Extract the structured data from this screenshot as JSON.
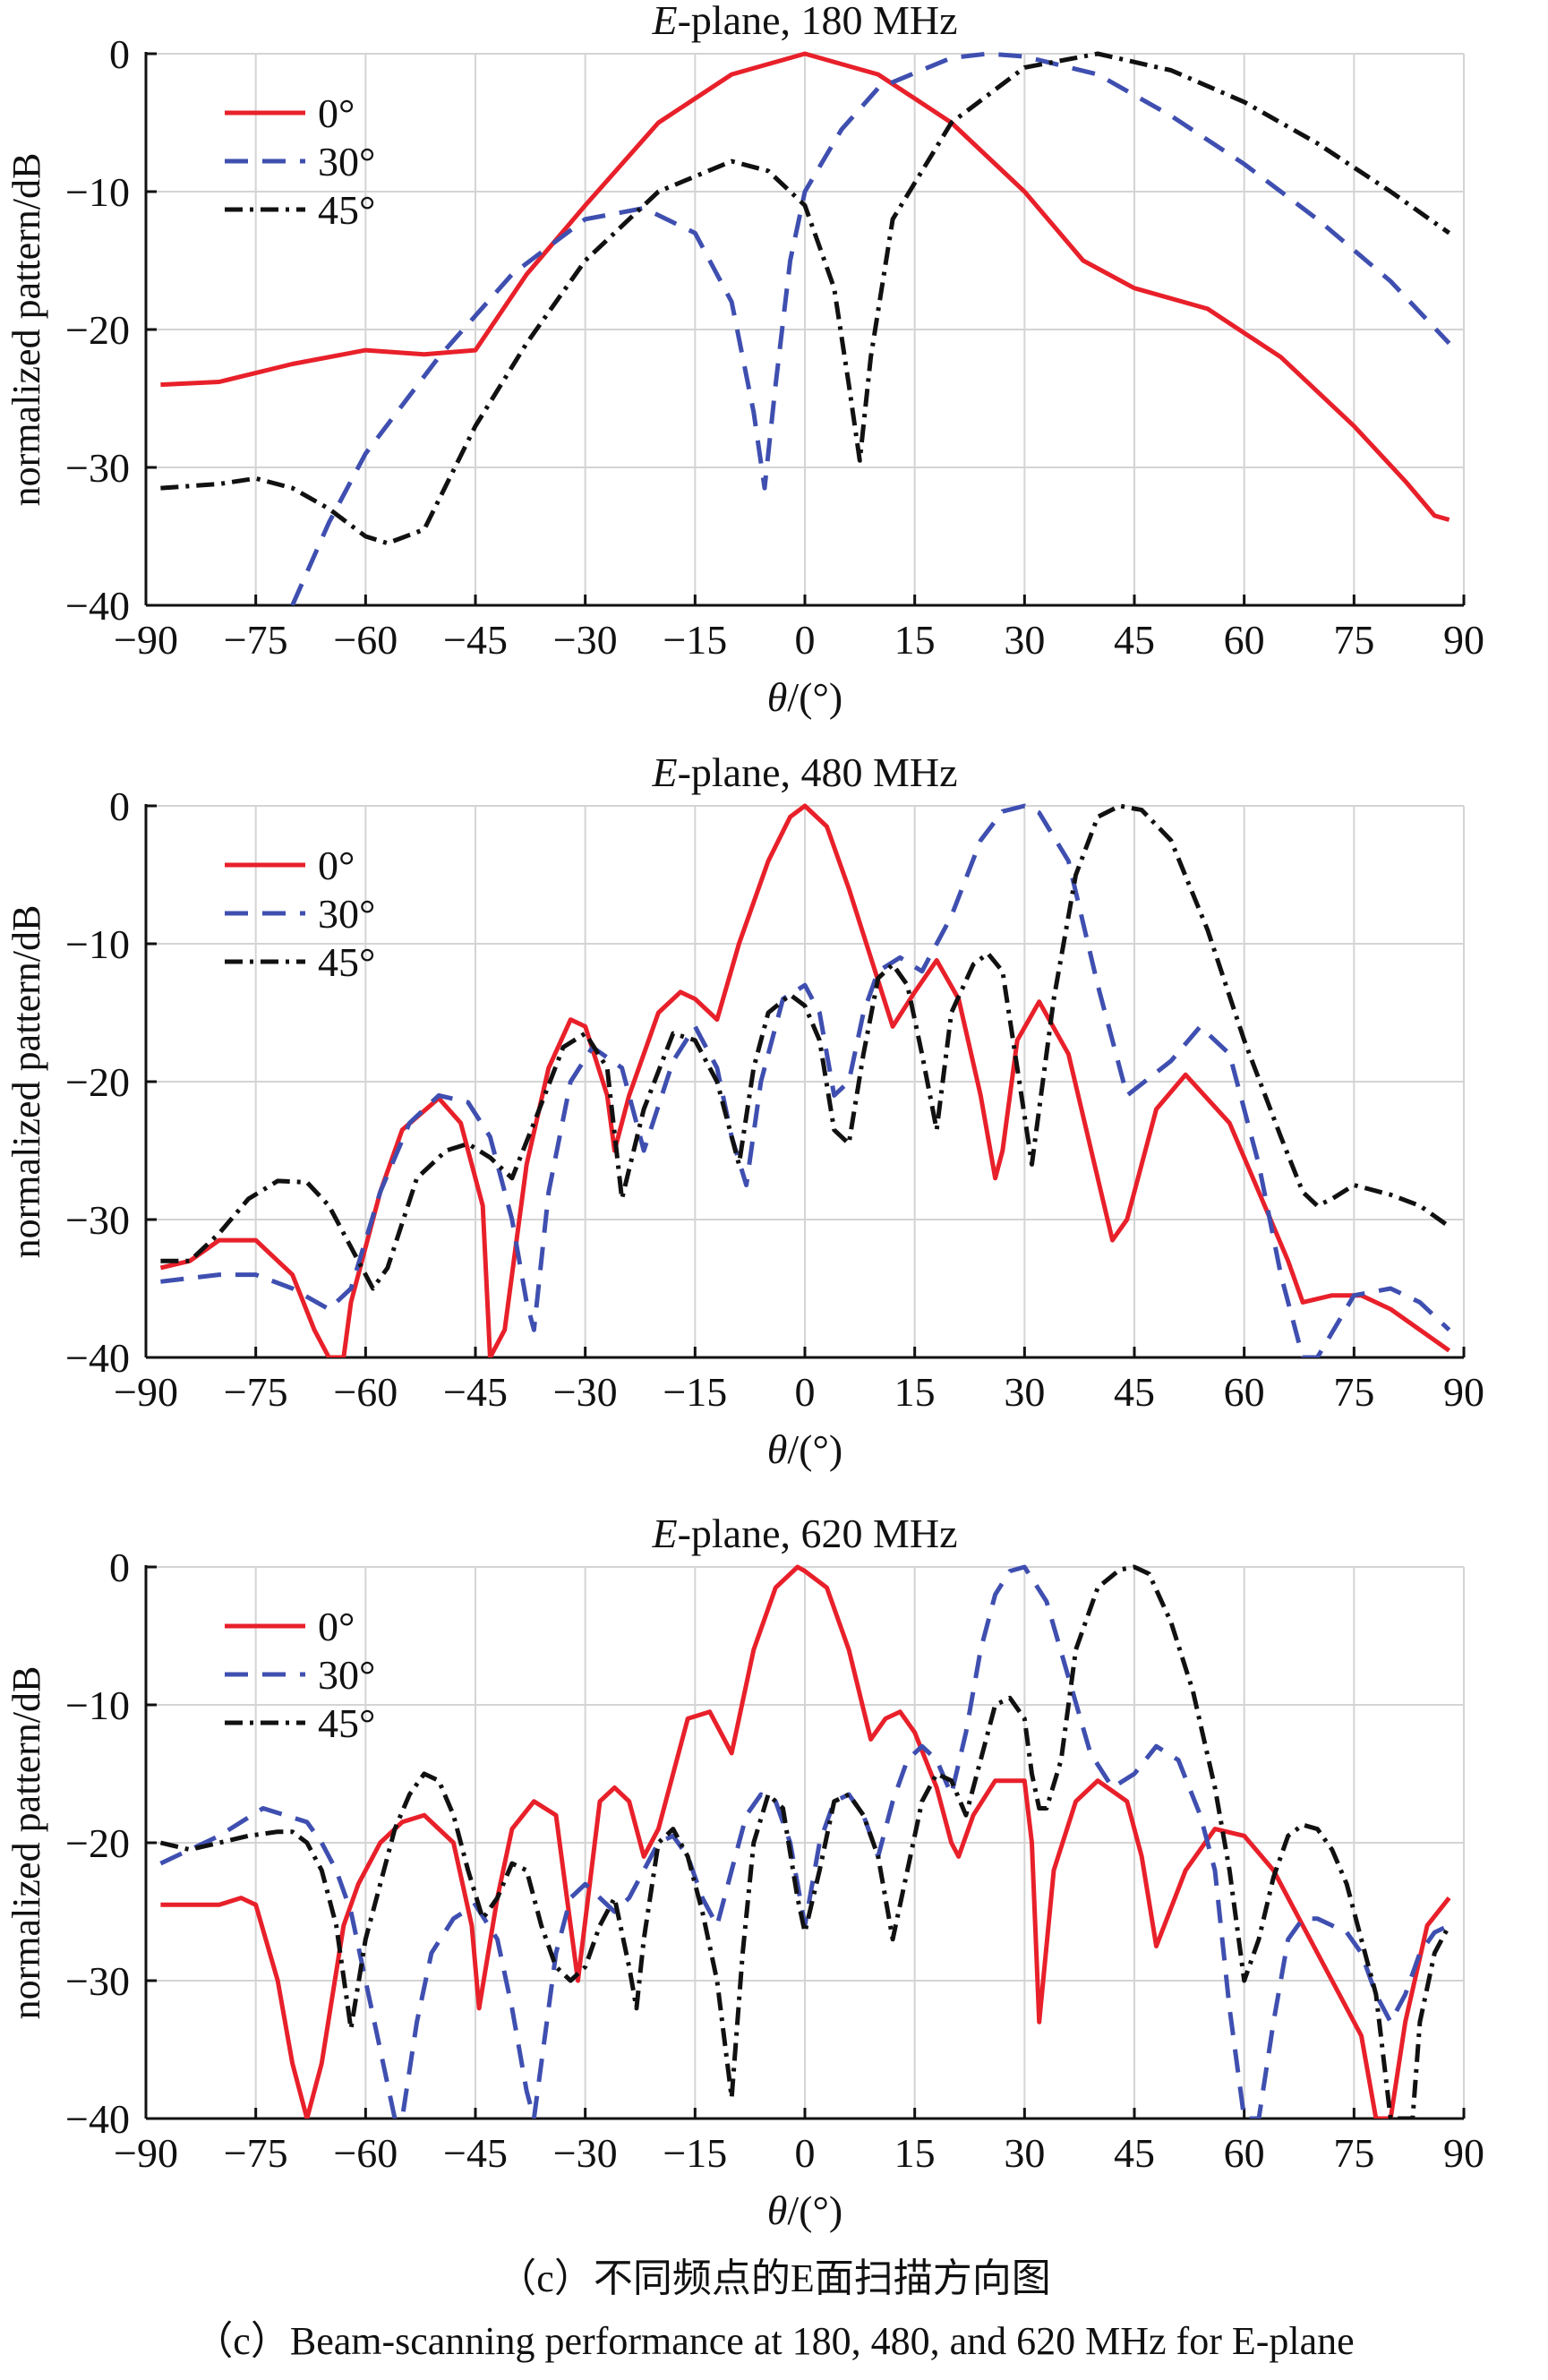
{
  "figure": {
    "caption_cn": "（c）不同频点的E面扫描方向图",
    "caption_en": "（c）Beam-scanning performance at 180, 480, and 620 MHz for E-plane"
  },
  "chart_data": [
    {
      "type": "line",
      "title": "E-plane, 180 MHz",
      "xlabel": "θ/(°)",
      "ylabel": "normalized pattern/dB",
      "xlim": [
        -90,
        90
      ],
      "ylim": [
        -40,
        0
      ],
      "xticks": [
        -90,
        -75,
        -60,
        -45,
        -30,
        -15,
        0,
        15,
        30,
        45,
        60,
        75,
        90
      ],
      "yticks": [
        0,
        -10,
        -20,
        -30,
        -40
      ],
      "grid": true,
      "legend_position": "top-left",
      "series": [
        {
          "name": "0°",
          "color": "#e8202a",
          "dash": "solid",
          "x": [
            -88,
            -80,
            -70,
            -60,
            -52,
            -45,
            -38,
            -30,
            -20,
            -10,
            0,
            10,
            20,
            30,
            38,
            45,
            55,
            65,
            75,
            82,
            86,
            88
          ],
          "y": [
            -24,
            -23.8,
            -22.5,
            -21.5,
            -21.8,
            -21.5,
            -16,
            -11,
            -5,
            -1.5,
            0,
            -1.5,
            -5,
            -10,
            -15,
            -17,
            -18.5,
            -22,
            -27,
            -31,
            -33.5,
            -33.8
          ]
        },
        {
          "name": "30°",
          "color": "#3f4fb0",
          "dash": "dashed",
          "x": [
            -70,
            -65,
            -60,
            -50,
            -40,
            -30,
            -22,
            -15,
            -10,
            -7,
            -5.5,
            -4,
            -2,
            0,
            5,
            10,
            20,
            25,
            30,
            40,
            50,
            60,
            70,
            80,
            88
          ],
          "y": [
            -40,
            -34,
            -29,
            -22,
            -16,
            -12,
            -11.2,
            -13,
            -18,
            -26,
            -31.5,
            -24,
            -15,
            -10,
            -5.5,
            -2.5,
            -0.3,
            0,
            -0.2,
            -1.5,
            -4.5,
            -8,
            -12,
            -16.5,
            -21
          ]
        },
        {
          "name": "45°",
          "color": "#111111",
          "dash": "dashdot",
          "x": [
            -88,
            -80,
            -75,
            -70,
            -65,
            -60,
            -57,
            -52,
            -45,
            -38,
            -30,
            -20,
            -10,
            -5,
            0,
            4,
            6,
            7.5,
            9,
            12,
            20,
            30,
            40,
            50,
            60,
            70,
            80,
            88
          ],
          "y": [
            -31.5,
            -31.2,
            -30.8,
            -31.5,
            -33,
            -35,
            -35.5,
            -34.5,
            -27,
            -21,
            -15,
            -10,
            -7.8,
            -8.5,
            -11,
            -17,
            -24,
            -29.5,
            -22,
            -12,
            -5,
            -1,
            0,
            -1.2,
            -3.5,
            -6.5,
            -10,
            -13
          ]
        }
      ]
    },
    {
      "type": "line",
      "title": "E-plane, 480 MHz",
      "xlabel": "θ/(°)",
      "ylabel": "normalized pattern/dB",
      "xlim": [
        -90,
        90
      ],
      "ylim": [
        -40,
        0
      ],
      "xticks": [
        -90,
        -75,
        -60,
        -45,
        -30,
        -15,
        0,
        15,
        30,
        45,
        60,
        75,
        90
      ],
      "yticks": [
        0,
        -10,
        -20,
        -30,
        -40
      ],
      "grid": true,
      "legend_position": "top-left",
      "series": [
        {
          "name": "0°",
          "color": "#e8202a",
          "dash": "solid",
          "x": [
            -88,
            -84,
            -80,
            -75,
            -70,
            -67,
            -65,
            -63,
            -62,
            -58,
            -55,
            -50,
            -47,
            -44,
            -43,
            -41,
            -38,
            -35,
            -32,
            -30,
            -27,
            -26,
            -24,
            -20,
            -17,
            -15,
            -12,
            -9,
            -5,
            -2,
            0,
            3,
            6,
            9,
            12,
            15,
            18,
            21,
            24,
            26,
            27,
            29,
            32,
            36,
            40,
            42,
            44,
            48,
            52,
            58,
            62,
            66,
            68,
            72,
            76,
            80,
            84,
            88
          ],
          "y": [
            -33.5,
            -33,
            -31.5,
            -31.5,
            -34,
            -38,
            -40,
            -40,
            -36,
            -28,
            -23.5,
            -21.2,
            -23,
            -29,
            -40,
            -38,
            -26,
            -19,
            -15.5,
            -16,
            -21,
            -25,
            -21,
            -15,
            -13.5,
            -14,
            -15.5,
            -10,
            -4,
            -0.8,
            0,
            -1.5,
            -6,
            -11,
            -16,
            -13.5,
            -11.2,
            -14,
            -21,
            -27,
            -25,
            -17,
            -14.2,
            -18,
            -27,
            -31.5,
            -30,
            -22,
            -19.5,
            -23,
            -28,
            -33,
            -36,
            -35.5,
            -35.5,
            -36.5,
            -38,
            -39.5
          ]
        },
        {
          "name": "30°",
          "color": "#3f4fb0",
          "dash": "dashed",
          "x": [
            -88,
            -80,
            -75,
            -70,
            -65,
            -62,
            -58,
            -54,
            -50,
            -46,
            -43,
            -40,
            -38,
            -37,
            -35,
            -32,
            -29,
            -25,
            -22,
            -18,
            -15,
            -12,
            -10,
            -8,
            -6,
            -3,
            0,
            2,
            4,
            6,
            8,
            10,
            13,
            16,
            20,
            24,
            27,
            30,
            32,
            36,
            40,
            44,
            50,
            54,
            58,
            62,
            65,
            68,
            70,
            75,
            80,
            84,
            88
          ],
          "y": [
            -34.5,
            -34,
            -34,
            -35,
            -36.5,
            -35,
            -28,
            -23,
            -21,
            -21.5,
            -24,
            -30,
            -36,
            -38,
            -28,
            -20,
            -17.5,
            -19,
            -25,
            -18.5,
            -16,
            -19,
            -24,
            -27.5,
            -20,
            -14,
            -13,
            -15,
            -21,
            -20,
            -15,
            -12,
            -11,
            -12,
            -8,
            -2.5,
            -0.4,
            0,
            -0.5,
            -4,
            -13,
            -21,
            -18.5,
            -16,
            -18,
            -26,
            -34,
            -40,
            -40,
            -35.5,
            -35,
            -36,
            -38
          ]
        },
        {
          "name": "45°",
          "color": "#111111",
          "dash": "dashdot",
          "x": [
            -88,
            -84,
            -80,
            -76,
            -72,
            -68,
            -65,
            -62,
            -59,
            -57,
            -53,
            -49,
            -46,
            -43,
            -40,
            -37,
            -33,
            -30,
            -27,
            -25,
            -22,
            -18,
            -15,
            -12,
            -9,
            -7,
            -5,
            -2,
            0,
            2,
            4,
            6,
            8,
            10,
            12,
            14,
            16,
            18,
            20,
            23,
            25,
            27,
            29,
            31,
            34,
            37,
            40,
            43,
            46,
            50,
            55,
            60,
            65,
            68,
            70,
            72,
            75,
            80,
            84,
            88
          ],
          "y": [
            -33,
            -33,
            -31,
            -28.5,
            -27.2,
            -27.3,
            -29,
            -32,
            -35,
            -33.5,
            -27,
            -25,
            -24.5,
            -25.5,
            -27,
            -23,
            -17.5,
            -16.5,
            -19,
            -28.5,
            -22,
            -16.5,
            -17,
            -20,
            -26,
            -19,
            -15,
            -13.7,
            -14.5,
            -17,
            -23.5,
            -24.5,
            -18,
            -12.5,
            -11.5,
            -13,
            -18,
            -23.5,
            -15,
            -11.5,
            -10.7,
            -12,
            -19,
            -26,
            -14,
            -5,
            -0.8,
            0,
            -0.3,
            -2.5,
            -9,
            -17,
            -24,
            -28,
            -29,
            -28.5,
            -27.5,
            -28.2,
            -29,
            -30.5
          ]
        }
      ]
    },
    {
      "type": "line",
      "title": "E-plane, 620 MHz",
      "xlabel": "θ/(°)",
      "ylabel": "normalized pattern/dB",
      "xlim": [
        -90,
        90
      ],
      "ylim": [
        -40,
        0
      ],
      "xticks": [
        -90,
        -75,
        -60,
        -45,
        -30,
        -15,
        0,
        15,
        30,
        45,
        60,
        75,
        90
      ],
      "yticks": [
        0,
        -10,
        -20,
        -30,
        -40
      ],
      "grid": true,
      "legend_position": "top-left",
      "series": [
        {
          "name": "0°",
          "color": "#e8202a",
          "dash": "solid",
          "x": [
            -88,
            -84,
            -80,
            -77,
            -75,
            -72,
            -70,
            -68,
            -66,
            -63,
            -61,
            -58,
            -55,
            -52,
            -48,
            -45.5,
            -44.5,
            -42,
            -40,
            -37,
            -34,
            -32.5,
            -31,
            -28,
            -26,
            -24,
            -22,
            -20,
            -18,
            -16,
            -13,
            -10,
            -7,
            -4,
            -1,
            0,
            3,
            6,
            9,
            11,
            13,
            15,
            18,
            20,
            21,
            23,
            26,
            30,
            31,
            32,
            34,
            37,
            40,
            44,
            46,
            48,
            52,
            56,
            60,
            64,
            68,
            72,
            74,
            76,
            78,
            80,
            82,
            85,
            88
          ],
          "y": [
            -24.5,
            -24.5,
            -24.5,
            -24,
            -24.5,
            -30,
            -36,
            -40,
            -36,
            -26,
            -23,
            -20,
            -18.5,
            -18,
            -20,
            -26,
            -32,
            -24,
            -19,
            -17,
            -18,
            -24,
            -30,
            -17,
            -16,
            -17,
            -21,
            -19,
            -15,
            -11,
            -10.5,
            -13.5,
            -6,
            -1.5,
            0,
            -0.3,
            -1.5,
            -6,
            -12.5,
            -11,
            -10.5,
            -12,
            -16,
            -20,
            -21,
            -18,
            -15.5,
            -15.5,
            -20,
            -33,
            -22,
            -17,
            -15.5,
            -17,
            -21,
            -27.5,
            -22,
            -19,
            -19.5,
            -22,
            -26,
            -30,
            -32,
            -34,
            -40,
            -40,
            -33,
            -26,
            -24
          ]
        },
        {
          "name": "30°",
          "color": "#3f4fb0",
          "dash": "dashed",
          "x": [
            -88,
            -84,
            -80,
            -77,
            -74,
            -71,
            -68,
            -66,
            -64,
            -62,
            -60,
            -58,
            -56,
            -55,
            -53,
            -51,
            -48,
            -45,
            -42,
            -40,
            -38,
            -37,
            -36,
            -34,
            -32,
            -30,
            -28,
            -26,
            -24,
            -22,
            -20,
            -18,
            -16,
            -14,
            -12,
            -10,
            -8,
            -6,
            -4,
            -2,
            0,
            2,
            4,
            6,
            8,
            10,
            12,
            14,
            16,
            18,
            20,
            22,
            24,
            26,
            28,
            30,
            33,
            36,
            39,
            42,
            45,
            48,
            51,
            54,
            56,
            58,
            60,
            62,
            64,
            66,
            68,
            70,
            72,
            74,
            76,
            78,
            80,
            82,
            84,
            86,
            88
          ],
          "y": [
            -21.5,
            -20.5,
            -19.5,
            -18.5,
            -17.5,
            -18,
            -18.5,
            -20,
            -22,
            -25,
            -30,
            -35,
            -40,
            -40,
            -33,
            -28,
            -25.5,
            -24.5,
            -27,
            -32,
            -38,
            -40,
            -36,
            -28,
            -24,
            -23,
            -24,
            -25,
            -24,
            -22,
            -20,
            -19.5,
            -21,
            -24,
            -26,
            -22,
            -18,
            -16.5,
            -17,
            -20,
            -26,
            -20,
            -17,
            -16.5,
            -18,
            -21,
            -17,
            -14,
            -13,
            -14,
            -16.5,
            -12,
            -6,
            -2,
            -0.3,
            0,
            -2.5,
            -8,
            -13.5,
            -16,
            -15,
            -13,
            -14,
            -18,
            -22,
            -32,
            -40,
            -40,
            -33,
            -27,
            -25.5,
            -25.5,
            -26,
            -26.5,
            -28,
            -31,
            -33,
            -31,
            -28,
            -26.5,
            -26
          ]
        },
        {
          "name": "45°",
          "color": "#111111",
          "dash": "dashdot",
          "x": [
            -88,
            -84,
            -80,
            -76,
            -72,
            -70,
            -68,
            -66,
            -64,
            -62,
            -60,
            -58,
            -56,
            -54,
            -52,
            -50,
            -48,
            -46,
            -44,
            -42,
            -40,
            -38,
            -36,
            -34,
            -32,
            -30,
            -28,
            -26,
            -24,
            -23,
            -22,
            -20,
            -18,
            -16,
            -14,
            -12,
            -10,
            -8.5,
            -7,
            -5,
            -3,
            -1,
            0,
            2,
            4,
            6,
            8,
            10,
            12,
            14,
            16,
            18,
            20,
            22,
            24,
            26,
            28,
            30,
            31,
            32,
            33,
            35,
            37,
            40,
            43,
            45,
            47,
            50,
            53,
            56,
            58,
            60,
            62,
            64,
            66,
            68,
            70,
            72,
            74,
            76,
            78,
            80,
            81,
            82,
            83,
            84,
            86,
            88
          ],
          "y": [
            -20,
            -20.5,
            -20,
            -19.5,
            -19.2,
            -19.2,
            -20,
            -22,
            -26,
            -33.5,
            -27,
            -23,
            -19,
            -16.5,
            -15,
            -15.5,
            -18,
            -22,
            -25.5,
            -24,
            -21.5,
            -22,
            -26,
            -29,
            -30,
            -29,
            -26,
            -24,
            -29,
            -32,
            -27,
            -20,
            -19,
            -21,
            -25,
            -30,
            -38.5,
            -28,
            -20,
            -16.5,
            -17.5,
            -24,
            -26.5,
            -22,
            -17,
            -16.5,
            -18,
            -21,
            -27,
            -22,
            -17,
            -15,
            -15.5,
            -18,
            -14,
            -10,
            -9.5,
            -11,
            -15,
            -17.5,
            -17.5,
            -14,
            -6,
            -1.5,
            -0.2,
            0,
            -0.5,
            -4,
            -9,
            -16,
            -22,
            -30,
            -27,
            -22.5,
            -19.5,
            -18.7,
            -19,
            -20.5,
            -23,
            -27,
            -31,
            -40,
            -40,
            -40,
            -40,
            -33,
            -28,
            -26
          ]
        }
      ]
    }
  ]
}
